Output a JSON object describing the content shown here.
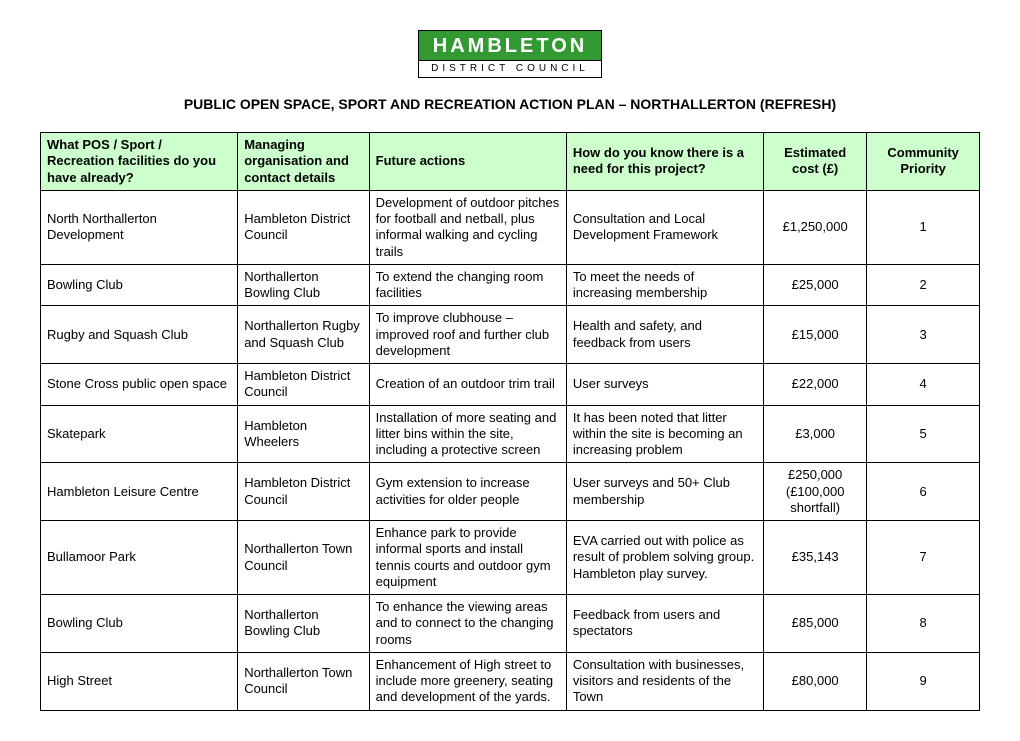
{
  "logo": {
    "top": "HAMBLETON",
    "bottom": "DISTRICT COUNCIL"
  },
  "title": "PUBLIC OPEN SPACE, SPORT AND RECREATION ACTION PLAN – NORTHALLERTON (REFRESH)",
  "columns": [
    "What POS / Sport / Recreation facilities do you have already?",
    "Managing organisation and contact details",
    "Future actions",
    "How do you know there is a need for this project?",
    "Estimated cost (£)",
    "Community Priority"
  ],
  "rows": [
    {
      "facility": "North Northallerton Development",
      "org": "Hambleton District Council",
      "actions": "Development of outdoor pitches for football and netball, plus informal walking and cycling trails",
      "need": "Consultation and Local Development Framework",
      "cost": "£1,250,000",
      "priority": "1"
    },
    {
      "facility": "Bowling Club",
      "org": "Northallerton Bowling Club",
      "actions": "To extend the changing room facilities",
      "need": "To meet the needs of increasing membership",
      "cost": "£25,000",
      "priority": "2"
    },
    {
      "facility": "Rugby and Squash Club",
      "org": "Northallerton Rugby and Squash Club",
      "actions": "To improve clubhouse – improved roof and further club development",
      "need": "Health and safety, and feedback from users",
      "cost": "£15,000",
      "priority": "3"
    },
    {
      "facility": "Stone Cross public open space",
      "org": "Hambleton District Council",
      "actions": "Creation of an outdoor trim trail",
      "need": "User surveys",
      "cost": "£22,000",
      "priority": "4"
    },
    {
      "facility": "Skatepark",
      "org": "Hambleton Wheelers",
      "actions": "Installation of more seating and litter bins within the site, including a protective screen",
      "need": "It has been noted that litter within the site is becoming an increasing problem",
      "cost": "£3,000",
      "priority": "5"
    },
    {
      "facility": "Hambleton Leisure Centre",
      "org": "Hambleton District Council",
      "actions": "Gym extension to increase activities for older people",
      "need": "User surveys and 50+ Club membership",
      "cost": "£250,000 (£100,000 shortfall)",
      "priority": "6"
    },
    {
      "facility": "Bullamoor Park",
      "org": "Northallerton Town Council",
      "actions": "Enhance park to provide informal sports and install tennis courts and outdoor gym equipment",
      "need": "EVA carried out with police as result of problem solving group. Hambleton play survey.",
      "cost": "£35,143",
      "priority": "7"
    },
    {
      "facility": "Bowling Club",
      "org": "Northallerton Bowling Club",
      "actions": "To enhance the viewing areas and to connect to the changing rooms",
      "need": "Feedback from users and spectators",
      "cost": "£85,000",
      "priority": "8"
    },
    {
      "facility": "High Street",
      "org": "Northallerton Town Council",
      "actions": "Enhancement of High street to include more greenery, seating and development of the yards.",
      "need": "Consultation with businesses, visitors and residents of the Town",
      "cost": "£80,000",
      "priority": "9"
    }
  ]
}
